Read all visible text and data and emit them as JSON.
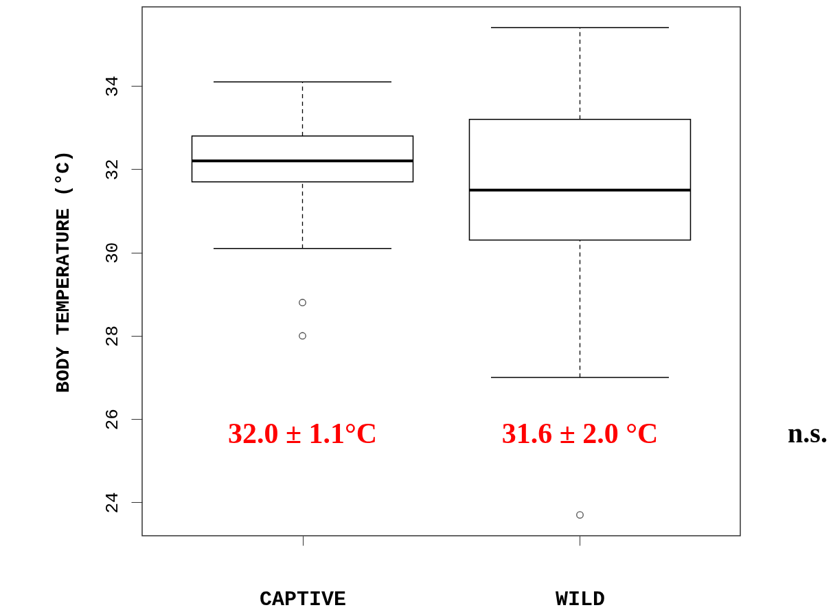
{
  "chart_data": {
    "type": "box",
    "ylabel": "BODY  TEMPERATURE  (°C)",
    "categories": [
      "CAPTIVE",
      "WILD"
    ],
    "boxes": [
      {
        "low": 30.1,
        "q1": 31.7,
        "median": 32.2,
        "q3": 32.8,
        "high": 34.1,
        "outliers": [
          28.8,
          28.0
        ]
      },
      {
        "low": 27.0,
        "q1": 30.3,
        "median": 31.5,
        "q3": 33.2,
        "high": 35.4,
        "outliers": [
          23.7
        ]
      }
    ],
    "ylim": [
      23.2,
      35.9
    ],
    "yticks": [
      24,
      26,
      28,
      30,
      32,
      34
    ],
    "grid": false,
    "annotations": [
      "32.0 ± 1.1°C",
      "31.6 ± 2.0 °C",
      "n.s."
    ]
  }
}
